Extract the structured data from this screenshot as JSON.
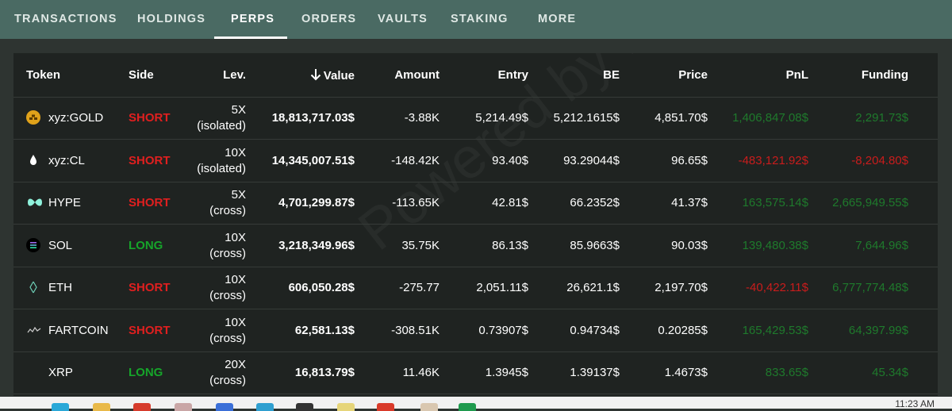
{
  "tabs": [
    {
      "label": "TRANSACTIONS",
      "active": false
    },
    {
      "label": "HOLDINGS",
      "active": false
    },
    {
      "label": "PERPS",
      "active": true
    },
    {
      "label": "ORDERS",
      "active": false
    },
    {
      "label": "VAULTS",
      "active": false
    },
    {
      "label": "STAKING",
      "active": false
    },
    {
      "label": "MORE",
      "active": false
    }
  ],
  "table": {
    "headers": {
      "token": "Token",
      "side": "Side",
      "lev": "Lev.",
      "value": "Value",
      "amount": "Amount",
      "entry": "Entry",
      "be": "BE",
      "price": "Price",
      "pnl": "PnL",
      "funding": "Funding"
    },
    "sort_icon": "arrow-down-icon",
    "rows": [
      {
        "token": "xyz:GOLD",
        "icon": "gold-bars-icon",
        "side": "SHORT",
        "lev": "5X",
        "margin": "(isolated)",
        "value": "18,813,717.03$",
        "amount": "-3.88K",
        "entry": "5,214.49$",
        "be": "5,212.1615$",
        "price": "4,851.70$",
        "pnl": "1,406,847.08$",
        "funding": "2,291.73$"
      },
      {
        "token": "xyz:CL",
        "icon": "oil-drop-icon",
        "side": "SHORT",
        "lev": "10X",
        "margin": "(isolated)",
        "value": "14,345,007.51$",
        "amount": "-148.42K",
        "entry": "93.40$",
        "be": "93.29044$",
        "price": "96.65$",
        "pnl": "-483,121.92$",
        "funding": "-8,204.80$"
      },
      {
        "token": "HYPE",
        "icon": "hype-icon",
        "side": "SHORT",
        "lev": "5X",
        "margin": "(cross)",
        "value": "4,701,299.87$",
        "amount": "-113.65K",
        "entry": "42.81$",
        "be": "66.2352$",
        "price": "41.37$",
        "pnl": "163,575.14$",
        "funding": "2,665,949.55$"
      },
      {
        "token": "SOL",
        "icon": "solana-icon",
        "side": "LONG",
        "lev": "10X",
        "margin": "(cross)",
        "value": "3,218,349.96$",
        "amount": "35.75K",
        "entry": "86.13$",
        "be": "85.9663$",
        "price": "90.03$",
        "pnl": "139,480.38$",
        "funding": "7,644.96$"
      },
      {
        "token": "ETH",
        "icon": "ethereum-icon",
        "side": "SHORT",
        "lev": "10X",
        "margin": "(cross)",
        "value": "606,050.28$",
        "amount": "-275.77",
        "entry": "2,051.11$",
        "be": "26,621.1$",
        "price": "2,197.70$",
        "pnl": "-40,422.11$",
        "funding": "6,777,774.48$"
      },
      {
        "token": "FARTCOIN",
        "icon": "fartcoin-icon",
        "side": "SHORT",
        "lev": "10X",
        "margin": "(cross)",
        "value": "62,581.13$",
        "amount": "-308.51K",
        "entry": "0.73907$",
        "be": "0.94734$",
        "price": "0.20285$",
        "pnl": "165,429.53$",
        "funding": "64,397.99$"
      },
      {
        "token": "XRP",
        "icon": "xrp-icon",
        "side": "LONG",
        "lev": "20X",
        "margin": "(cross)",
        "value": "16,813.79$",
        "amount": "11.46K",
        "entry": "1.3945$",
        "be": "1.39137$",
        "price": "1.4673$",
        "pnl": "833.65$",
        "funding": "45.34$"
      }
    ]
  },
  "watermark": "Powered by Hyperliquid",
  "taskbar": {
    "time": "11:23 AM"
  }
}
